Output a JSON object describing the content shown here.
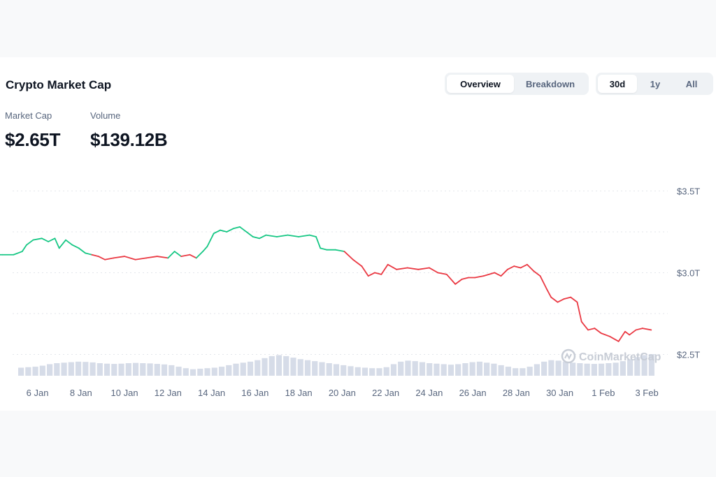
{
  "header": {
    "title": "Crypto Market Cap",
    "view_tabs": [
      {
        "label": "Overview",
        "active": true
      },
      {
        "label": "Breakdown",
        "active": false
      }
    ],
    "range_tabs": [
      {
        "label": "30d",
        "active": true
      },
      {
        "label": "1y",
        "active": false
      },
      {
        "label": "All",
        "active": false
      }
    ]
  },
  "stats": {
    "market_cap": {
      "label": "Market Cap",
      "value": "$2.65T"
    },
    "volume": {
      "label": "Volume",
      "value": "$139.12B"
    }
  },
  "watermark": "CoinMarketCap",
  "colors": {
    "up": "#16c784",
    "down": "#ea3943",
    "volume": "#cfd6e4",
    "grid": "#e3e6eb",
    "text": "#0d1421",
    "muted": "#58667e"
  },
  "chart_data": {
    "type": "line",
    "title": "",
    "y_ticks": [
      {
        "value": 3.5,
        "label": "$3.5T"
      },
      {
        "value": 3.0,
        "label": "$3.0T"
      },
      {
        "value": 2.5,
        "label": "$2.5T"
      }
    ],
    "ylim": [
      2.37,
      3.6
    ],
    "x_unit": "days since 4 Jan",
    "x_ticks": [
      {
        "x": 2,
        "label": "6 Jan"
      },
      {
        "x": 4,
        "label": "8 Jan"
      },
      {
        "x": 6,
        "label": "10 Jan"
      },
      {
        "x": 8,
        "label": "12 Jan"
      },
      {
        "x": 10,
        "label": "14 Jan"
      },
      {
        "x": 12,
        "label": "16 Jan"
      },
      {
        "x": 14,
        "label": "18 Jan"
      },
      {
        "x": 16,
        "label": "20 Jan"
      },
      {
        "x": 18,
        "label": "22 Jan"
      },
      {
        "x": 20,
        "label": "24 Jan"
      },
      {
        "x": 22,
        "label": "26 Jan"
      },
      {
        "x": 24,
        "label": "28 Jan"
      },
      {
        "x": 26,
        "label": "30 Jan"
      },
      {
        "x": 28,
        "label": "1 Feb"
      },
      {
        "x": 30,
        "label": "3 Feb"
      }
    ],
    "xlim": [
      0.6,
      30.8
    ],
    "baseline": 3.11,
    "series": [
      {
        "name": "Market Cap",
        "x": [
          0,
          0.4,
          0.9,
          1.3,
          1.5,
          1.8,
          2.2,
          2.5,
          2.8,
          3.0,
          3.3,
          3.6,
          3.9,
          4.2,
          4.5,
          4.8,
          5.1,
          5.5,
          6.0,
          6.5,
          7.0,
          7.5,
          8.0,
          8.3,
          8.6,
          9.0,
          9.3,
          9.6,
          9.8,
          10.1,
          10.4,
          10.7,
          11.0,
          11.3,
          11.6,
          11.9,
          12.2,
          12.5,
          13.0,
          13.5,
          14.0,
          14.5,
          14.8,
          15.0,
          15.3,
          15.7,
          16.1,
          16.5,
          16.9,
          17.2,
          17.5,
          17.8,
          18.1,
          18.5,
          19.0,
          19.5,
          20.0,
          20.4,
          20.8,
          21.2,
          21.5,
          21.8,
          22.1,
          22.5,
          23.0,
          23.3,
          23.6,
          23.9,
          24.2,
          24.5,
          24.8,
          25.1,
          25.4,
          25.6,
          25.9,
          26.2,
          26.5,
          26.8,
          27.0,
          27.3,
          27.6,
          27.9,
          28.3,
          28.7,
          29.0,
          29.2,
          29.5,
          29.8,
          30.2
        ],
        "y": [
          3.11,
          3.11,
          3.11,
          3.13,
          3.17,
          3.2,
          3.21,
          3.19,
          3.21,
          3.15,
          3.2,
          3.17,
          3.15,
          3.12,
          3.11,
          3.1,
          3.08,
          3.09,
          3.1,
          3.08,
          3.09,
          3.1,
          3.09,
          3.13,
          3.1,
          3.11,
          3.09,
          3.13,
          3.16,
          3.24,
          3.26,
          3.25,
          3.27,
          3.28,
          3.25,
          3.22,
          3.21,
          3.23,
          3.22,
          3.23,
          3.22,
          3.23,
          3.22,
          3.15,
          3.14,
          3.14,
          3.13,
          3.08,
          3.04,
          2.98,
          3.0,
          2.99,
          3.05,
          3.02,
          3.03,
          3.02,
          3.03,
          3.0,
          2.99,
          2.93,
          2.96,
          2.97,
          2.97,
          2.98,
          3.0,
          2.98,
          3.02,
          3.04,
          3.03,
          3.05,
          3.01,
          2.98,
          2.9,
          2.85,
          2.82,
          2.84,
          2.85,
          2.82,
          2.7,
          2.65,
          2.66,
          2.63,
          2.61,
          2.58,
          2.64,
          2.62,
          2.65,
          2.66,
          2.65
        ]
      }
    ],
    "volume": [
      0.32,
      0.34,
      0.36,
      0.4,
      0.46,
      0.5,
      0.52,
      0.54,
      0.56,
      0.55,
      0.53,
      0.5,
      0.48,
      0.47,
      0.48,
      0.5,
      0.51,
      0.5,
      0.49,
      0.47,
      0.45,
      0.42,
      0.36,
      0.3,
      0.26,
      0.28,
      0.3,
      0.32,
      0.36,
      0.42,
      0.48,
      0.52,
      0.56,
      0.62,
      0.7,
      0.78,
      0.82,
      0.78,
      0.72,
      0.66,
      0.62,
      0.58,
      0.54,
      0.5,
      0.46,
      0.42,
      0.38,
      0.34,
      0.32,
      0.3,
      0.3,
      0.34,
      0.46,
      0.56,
      0.6,
      0.58,
      0.54,
      0.5,
      0.48,
      0.46,
      0.44,
      0.46,
      0.5,
      0.54,
      0.56,
      0.52,
      0.48,
      0.42,
      0.36,
      0.3,
      0.3,
      0.36,
      0.46,
      0.56,
      0.62,
      0.6,
      0.56,
      0.52,
      0.5,
      0.48,
      0.47,
      0.48,
      0.5,
      0.52,
      0.58,
      0.66,
      0.74,
      0.82,
      0.86
    ]
  }
}
